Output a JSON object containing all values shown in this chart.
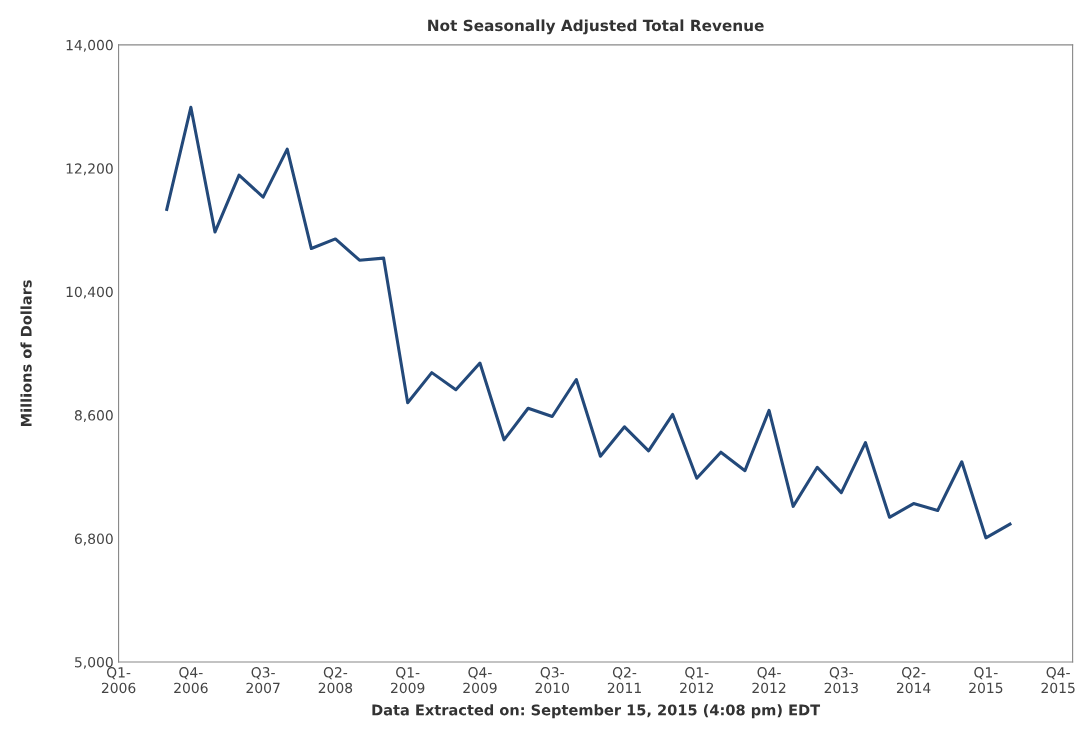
{
  "chart_data": {
    "type": "line",
    "title": "Not Seasonally Adjusted Total Revenue",
    "xlabel": "Data Extracted on: September 15, 2015 (4:08 pm) EDT",
    "ylabel": "Millions of Dollars",
    "categories": [
      "Q1-2006",
      null,
      null,
      "Q4-2006",
      null,
      null,
      "Q3-2007",
      null,
      null,
      "Q2-2008",
      null,
      null,
      "Q1-2009",
      null,
      null,
      "Q4-2009",
      null,
      null,
      "Q3-2010",
      null,
      null,
      "Q2-2011",
      null,
      null,
      "Q1-2012",
      null,
      null,
      "Q4-2012",
      null,
      null,
      "Q3-2013",
      null,
      null,
      "Q2-2014",
      null,
      null,
      "Q1-2015",
      null,
      null,
      "Q4-2015"
    ],
    "series": [
      {
        "color": "#23497a",
        "values": [
          null,
          null,
          11600,
          13090,
          11270,
          12100,
          11780,
          12480,
          11030,
          11170,
          10860,
          10890,
          8780,
          9220,
          8970,
          9360,
          8240,
          8700,
          8580,
          9120,
          8000,
          8430,
          8080,
          8610,
          7680,
          8060,
          7790,
          8670,
          7270,
          7840,
          7470,
          8200,
          7110,
          7310,
          7210,
          7920,
          6810,
          7010,
          null,
          null
        ]
      }
    ],
    "ylim": [
      5000,
      14000
    ],
    "yticks": [
      {
        "value": 5000,
        "label": "5,000"
      },
      {
        "value": 6800,
        "label": "6,800"
      },
      {
        "value": 8600,
        "label": "8,600"
      },
      {
        "value": 10400,
        "label": "10,400"
      },
      {
        "value": 12200,
        "label": "12,200"
      },
      {
        "value": 14000,
        "label": "14,000"
      }
    ],
    "grid": false,
    "legend": false,
    "marker": "none",
    "line_style": "solid"
  }
}
